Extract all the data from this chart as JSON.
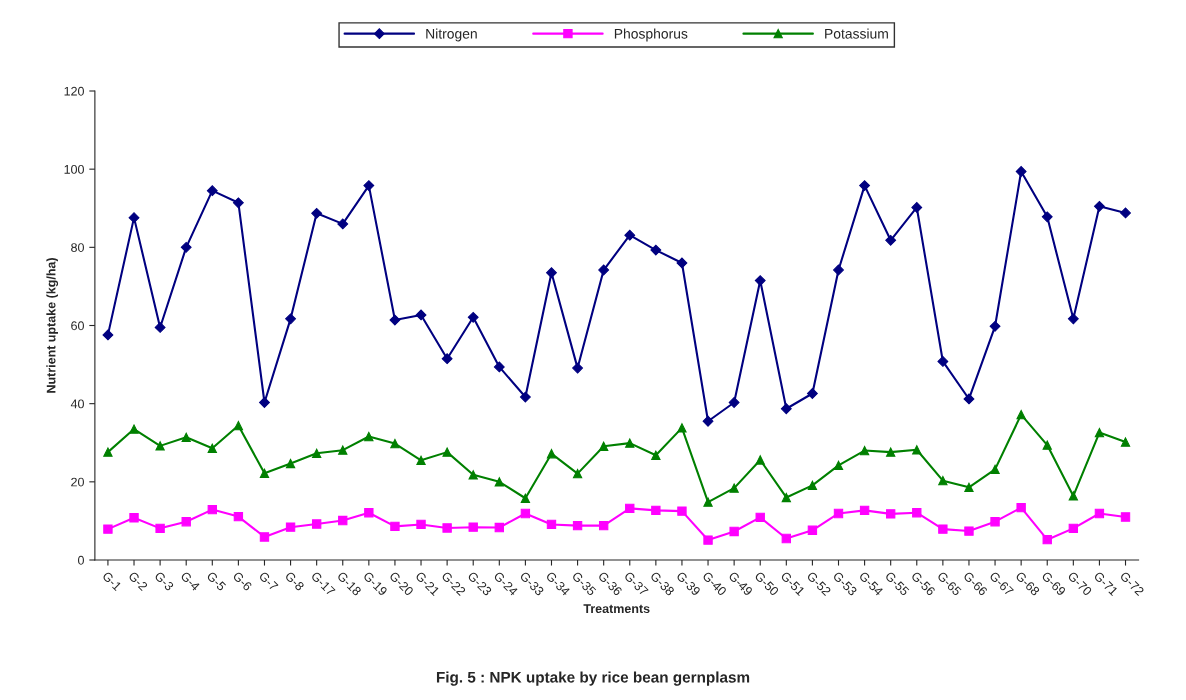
{
  "chart_data": {
    "type": "line",
    "title": "Fig. 5 : NPK uptake by rice bean gernplasm",
    "xlabel": "Treatments",
    "ylabel": "Nutrient uptake (kg/ha)",
    "categories": [
      "G-1",
      "G-2",
      "G-3",
      "G-4",
      "G-5",
      "G-6",
      "G-7",
      "G-8",
      "G-17",
      "G-18",
      "G-19",
      "G-20",
      "G-21",
      "G-22",
      "G-23",
      "G-24",
      "G-33",
      "G-34",
      "G-35",
      "G-36",
      "G-37",
      "G-38",
      "G-39",
      "G-40",
      "G-49",
      "G-50",
      "G-51",
      "G-52",
      "G-53",
      "G-54",
      "G-55",
      "G-56",
      "G-65",
      "G-66",
      "G-67",
      "G-68",
      "G-69",
      "G-70",
      "G-71",
      "G-72"
    ],
    "series": [
      {
        "name": "Nitrogen",
        "color": "#000080",
        "marker": "diamond",
        "values": [
          57.6,
          87.6,
          59.5,
          80,
          94.5,
          91.4,
          40.3,
          61.7,
          88.7,
          86,
          95.8,
          61.4,
          62.7,
          51.5,
          62.1,
          49.4,
          41.7,
          73.5,
          49.1,
          74.2,
          83.1,
          79.3,
          76,
          35.5,
          40.3,
          71.5,
          38.7,
          42.6,
          74.2,
          95.8,
          81.8,
          90.2,
          50.8,
          41.2,
          59.8,
          99.4,
          87.8,
          61.7,
          90.5,
          88.8
        ]
      },
      {
        "name": "Phosphorus",
        "color": "#ff00ff",
        "marker": "square",
        "values": [
          7.9,
          10.8,
          8.1,
          9.8,
          12.9,
          11.1,
          5.9,
          8.4,
          9.2,
          10.1,
          12.1,
          8.6,
          9.1,
          8.2,
          8.4,
          8.3,
          11.9,
          9.1,
          8.8,
          8.8,
          13.2,
          12.7,
          12.5,
          5.1,
          7.3,
          10.9,
          5.5,
          7.6,
          11.9,
          12.7,
          11.8,
          12.1,
          7.9,
          7.4,
          9.8,
          13.4,
          5.2,
          8.1,
          11.9,
          11.0
        ]
      },
      {
        "name": "Potassium",
        "color": "#008000",
        "marker": "triangle",
        "values": [
          27.6,
          33.5,
          29.2,
          31.4,
          28.6,
          34.4,
          22.2,
          24.7,
          27.3,
          28.1,
          31.6,
          29.8,
          25.5,
          27.6,
          21.8,
          20.0,
          15.8,
          27.2,
          22.1,
          29.1,
          29.9,
          26.8,
          33.8,
          14.8,
          18.4,
          25.6,
          16.0,
          19.1,
          24.2,
          28.0,
          27.6,
          28.2,
          20.3,
          18.6,
          23.2,
          37.2,
          29.4,
          16.4,
          32.6,
          30.2
        ]
      }
    ],
    "ylim": [
      0,
      120
    ],
    "yticks": [
      0,
      20,
      40,
      60,
      80,
      100,
      120
    ],
    "grid": false,
    "legend": "top"
  }
}
